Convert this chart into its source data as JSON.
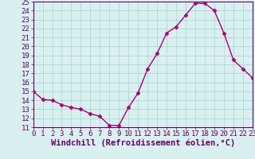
{
  "x": [
    0,
    1,
    2,
    3,
    4,
    5,
    6,
    7,
    8,
    9,
    10,
    11,
    12,
    13,
    14,
    15,
    16,
    17,
    18,
    19,
    20,
    21,
    22,
    23
  ],
  "y": [
    15.0,
    14.1,
    14.0,
    13.5,
    13.2,
    13.0,
    12.5,
    12.2,
    11.2,
    11.2,
    13.2,
    14.8,
    17.5,
    19.2,
    21.5,
    22.2,
    23.5,
    24.8,
    24.8,
    24.0,
    21.5,
    18.5,
    17.5,
    16.5
  ],
  "line_color": "#aa0077",
  "marker": "D",
  "marker_size": 2.5,
  "background_color": "#d8f0f0",
  "grid_color": "#b0d8d0",
  "xlabel": "Windchill (Refroidissement éolien,°C)",
  "xlabel_fontsize": 7.5,
  "ylim": [
    11,
    25
  ],
  "xlim": [
    0,
    23
  ],
  "yticks": [
    11,
    12,
    13,
    14,
    15,
    16,
    17,
    18,
    19,
    20,
    21,
    22,
    23,
    24,
    25
  ],
  "xticks": [
    0,
    1,
    2,
    3,
    4,
    5,
    6,
    7,
    8,
    9,
    10,
    11,
    12,
    13,
    14,
    15,
    16,
    17,
    18,
    19,
    20,
    21,
    22,
    23
  ],
  "tick_fontsize": 6.5,
  "tick_color": "#660066",
  "spine_color": "#660066",
  "line_width": 1.0
}
